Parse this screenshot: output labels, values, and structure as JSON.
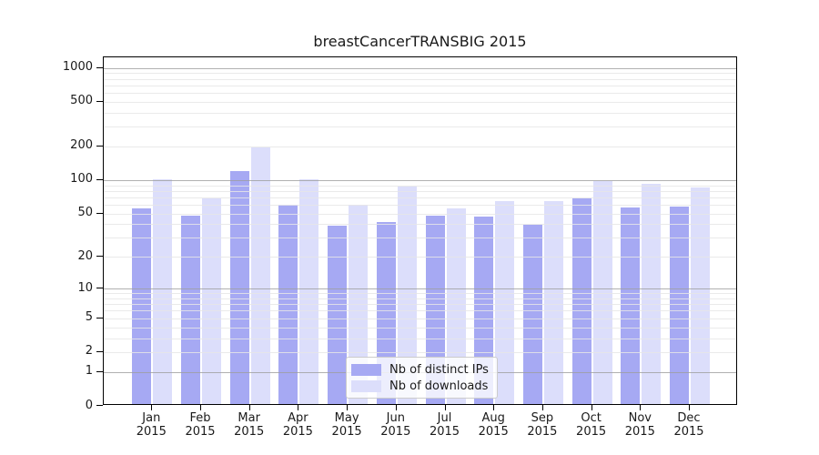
{
  "chart_data": {
    "type": "bar",
    "title": "breastCancerTRANSBIG 2015",
    "categories": [
      "Jan",
      "Feb",
      "Mar",
      "Apr",
      "May",
      "Jun",
      "Jul",
      "Aug",
      "Sep",
      "Oct",
      "Nov",
      "Dec"
    ],
    "x_year": "2015",
    "series": [
      {
        "name": "Nb of distinct IPs",
        "slug": "distinct-ips",
        "color": "#a6a9f3",
        "values": [
          54,
          46,
          115,
          58,
          37,
          40,
          46,
          45,
          38,
          66,
          55,
          56
        ]
      },
      {
        "name": "Nb of downloads",
        "slug": "downloads",
        "color": "#dcdefb",
        "values": [
          98,
          66,
          188,
          98,
          58,
          84,
          54,
          62,
          62,
          95,
          89,
          82
        ]
      }
    ],
    "y_scale": "log1p",
    "ylim": [
      0,
      1240
    ],
    "y_ticks": [
      0,
      1,
      2,
      5,
      10,
      20,
      50,
      100,
      200,
      500,
      1000
    ],
    "y_grid_major": [
      1,
      10,
      100,
      1000
    ],
    "y_grid_minor": [
      2,
      3,
      4,
      5,
      6,
      7,
      8,
      9,
      20,
      30,
      40,
      50,
      60,
      70,
      80,
      90,
      200,
      300,
      400,
      500,
      600,
      700,
      800,
      900
    ],
    "grid": true,
    "legend_position": "lower center"
  },
  "colors": {
    "background": "#ffffff",
    "spine": "#000000",
    "grid_major": "rgba(158,158,158,0.8)",
    "grid_minor": "rgba(230,230,230,0.85)",
    "text": "#1a1a1a",
    "legend_border": "#cccccc",
    "legend_bg": "rgba(255,255,255,0.8)"
  }
}
